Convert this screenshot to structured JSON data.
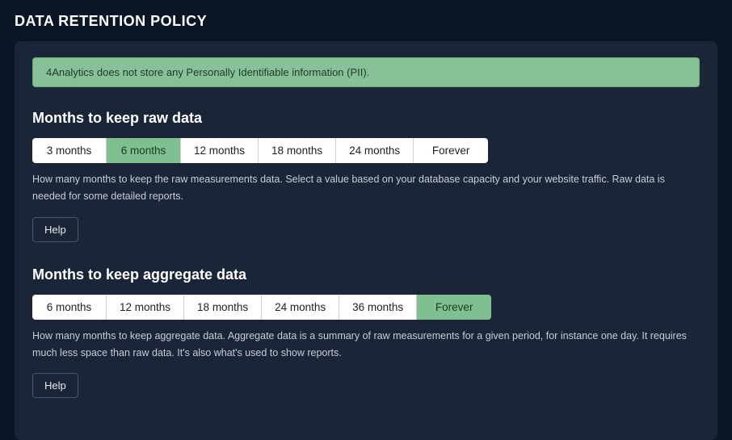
{
  "page_title": "DATA RETENTION POLICY",
  "alert_text": "4Analytics does not store any Personally Identifiable information (PII).",
  "raw_data": {
    "title": "Months to keep raw data",
    "options": [
      "3 months",
      "6 months",
      "12 months",
      "18 months",
      "24 months",
      "Forever"
    ],
    "selected_index": 1,
    "help_text": "How many months to keep the raw measurements data. Select a value based on your database capacity and your website traffic. Raw data is needed for some detailed reports.",
    "help_button": "Help"
  },
  "aggregate_data": {
    "title": "Months to keep aggregate data",
    "options": [
      "6 months",
      "12 months",
      "18 months",
      "24 months",
      "36 months",
      "Forever"
    ],
    "selected_index": 5,
    "help_text": "How many months to keep aggregate data. Aggregate data is a summary of raw measurements for a given period, for instance one day. It requires much less space than raw data. It's also what's used to show reports.",
    "help_button": "Help"
  },
  "colors": {
    "page_bg": "#0c1526",
    "panel_bg": "#1a2537",
    "alert_bg": "#88c098",
    "alert_text": "#1e3a2a",
    "option_bg": "#ffffff",
    "option_selected_bg": "#80bf8f",
    "text_primary": "#ffffff",
    "text_secondary": "#c8cdd4"
  }
}
